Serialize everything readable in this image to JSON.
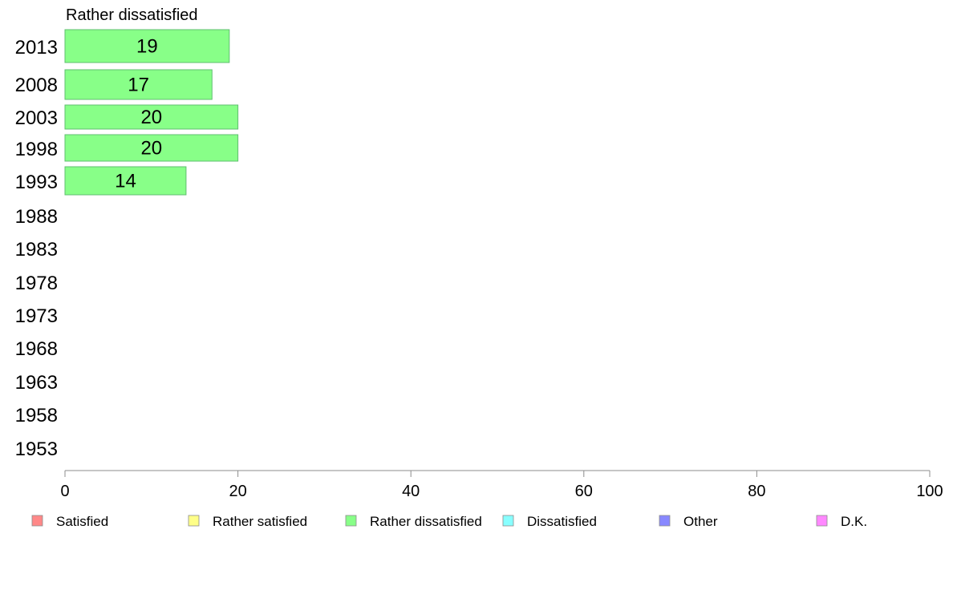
{
  "chart_data": {
    "type": "bar",
    "orientation": "horizontal",
    "title": "Rather dissatisfied",
    "categories": [
      "2013",
      "2008",
      "2003",
      "1998",
      "1993",
      "1988",
      "1983",
      "1978",
      "1973",
      "1968",
      "1963",
      "1958",
      "1953"
    ],
    "series": [
      {
        "name": "Rather dissatisfied",
        "color": "#88ff88",
        "values": [
          19,
          17,
          20,
          20,
          14,
          null,
          null,
          null,
          null,
          null,
          null,
          null,
          null
        ]
      }
    ],
    "xlim": [
      0,
      100
    ],
    "xticks": [
      "0",
      "20",
      "40",
      "60",
      "80",
      "100"
    ],
    "grid": false,
    "legend": {
      "placement": "bottom",
      "items": [
        {
          "label": "Satisfied",
          "color": "#ff8888"
        },
        {
          "label": "Rather satisfied",
          "color": "#ffff88"
        },
        {
          "label": "Rather dissatisfied",
          "color": "#88ff88"
        },
        {
          "label": "Dissatisfied",
          "color": "#88ffff"
        },
        {
          "label": "Other",
          "color": "#8888ff"
        },
        {
          "label": "D.K.",
          "color": "#ff88ff"
        }
      ]
    }
  }
}
